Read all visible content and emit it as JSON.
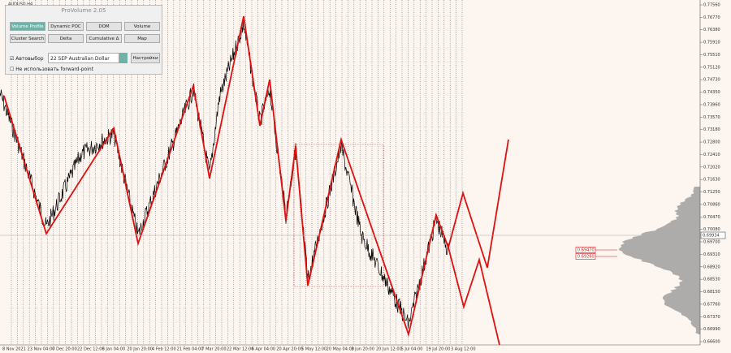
{
  "symbol": "AUDUSD,H4",
  "panel": {
    "title": "ProVolume 2.05",
    "buttons": [
      "Volume Profile",
      "Dynamic POC",
      "DOM",
      "Volume",
      "Cluster Search",
      "Delta",
      "Cumulative Δ",
      "Map"
    ],
    "auto": "Автовыбор",
    "instrument": "22 SEP Australian Dollar",
    "settings": "Настройки",
    "forward": "Не использовать forward-point"
  },
  "price_labels": [
    "0.77560",
    "0.76770",
    "0.76380",
    "0.75910",
    "0.75510",
    "0.75120",
    "0.74730",
    "0.74350",
    "0.73960",
    "0.73570",
    "0.73180",
    "0.72800",
    "0.72410",
    "0.72020",
    "0.71630",
    "0.71250",
    "0.70860",
    "0.70470",
    "0.70080",
    "0.69700",
    "0.69310",
    "0.68920",
    "0.68530",
    "0.68150",
    "0.67760",
    "0.67370",
    "0.66990",
    "0.66600"
  ],
  "current_price": "0.69934",
  "levels": [
    "0.69470",
    "0.69260"
  ],
  "date_labels": [
    "8 Nov 2021",
    "23 Nov 04:00",
    "7 Dec 20:00",
    "22 Dec 12:00",
    "6 Jan 04:00",
    "20 Jan 20:00",
    "4 Feb 12:00",
    "21 Feb 04:00",
    "7 Mar 20:00",
    "22 Mar 12:00",
    "6 Apr 04:00",
    "20 Apr 20:00",
    "5 May 12:00",
    "20 May 04:00",
    "3 Jun 20:00",
    "20 Jun 12:00",
    "5 Jul 04:00",
    "19 Jul 20:00",
    "3 Aug 12:00"
  ]
}
